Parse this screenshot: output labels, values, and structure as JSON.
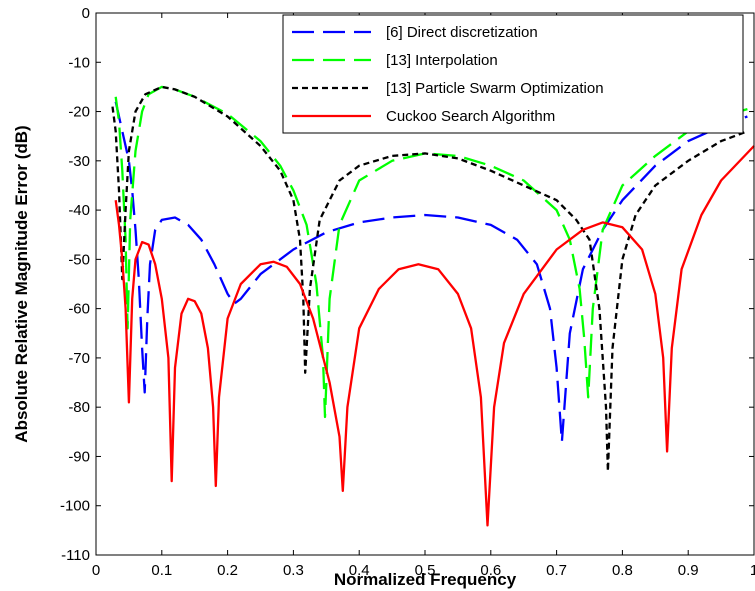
{
  "chart_data": {
    "type": "line",
    "title": "",
    "xlabel": "Normalized Frequency",
    "ylabel": "Absolute Relative Magnitude Error (dB)",
    "xlim": [
      0,
      1
    ],
    "ylim": [
      -110,
      0
    ],
    "x_ticks": [
      "0",
      "0.1",
      "0.2",
      "0.3",
      "0.4",
      "0.5",
      "0.6",
      "0.7",
      "0.8",
      "0.9",
      "1"
    ],
    "y_ticks": [
      "0",
      "-10",
      "-20",
      "-30",
      "-40",
      "-50",
      "-60",
      "-70",
      "-80",
      "-90",
      "-100",
      "-110"
    ],
    "grid": false,
    "legend_position": "top-right",
    "series": [
      {
        "name": "[6] Direct discretization",
        "color": "#0000ff",
        "dash": "long-dash",
        "points": [
          [
            0.03,
            -18
          ],
          [
            0.04,
            -24
          ],
          [
            0.05,
            -30
          ],
          [
            0.055,
            -36
          ],
          [
            0.06,
            -44
          ],
          [
            0.065,
            -54
          ],
          [
            0.07,
            -68
          ],
          [
            0.074,
            -77
          ],
          [
            0.078,
            -62
          ],
          [
            0.082,
            -51
          ],
          [
            0.09,
            -44
          ],
          [
            0.1,
            -42
          ],
          [
            0.12,
            -41.5
          ],
          [
            0.14,
            -43
          ],
          [
            0.16,
            -46
          ],
          [
            0.18,
            -51
          ],
          [
            0.2,
            -57
          ],
          [
            0.21,
            -59
          ],
          [
            0.22,
            -58
          ],
          [
            0.25,
            -53
          ],
          [
            0.3,
            -48
          ],
          [
            0.35,
            -44.5
          ],
          [
            0.4,
            -42.5
          ],
          [
            0.45,
            -41.5
          ],
          [
            0.5,
            -41
          ],
          [
            0.55,
            -41.5
          ],
          [
            0.6,
            -43
          ],
          [
            0.64,
            -46
          ],
          [
            0.67,
            -51
          ],
          [
            0.69,
            -60
          ],
          [
            0.7,
            -72
          ],
          [
            0.708,
            -87
          ],
          [
            0.72,
            -65
          ],
          [
            0.74,
            -52
          ],
          [
            0.77,
            -44
          ],
          [
            0.8,
            -38
          ],
          [
            0.85,
            -31
          ],
          [
            0.9,
            -26
          ],
          [
            0.95,
            -23
          ],
          [
            0.99,
            -21
          ]
        ]
      },
      {
        "name": "[13] Interpolation",
        "color": "#00ff00",
        "dash": "long-dash",
        "points": [
          [
            0.03,
            -17
          ],
          [
            0.035,
            -22
          ],
          [
            0.04,
            -32
          ],
          [
            0.045,
            -46
          ],
          [
            0.048,
            -64
          ],
          [
            0.052,
            -42
          ],
          [
            0.06,
            -28
          ],
          [
            0.07,
            -20
          ],
          [
            0.08,
            -16.5
          ],
          [
            0.1,
            -15
          ],
          [
            0.12,
            -15.5
          ],
          [
            0.15,
            -17
          ],
          [
            0.2,
            -20.5
          ],
          [
            0.25,
            -26
          ],
          [
            0.28,
            -31
          ],
          [
            0.3,
            -36
          ],
          [
            0.32,
            -43
          ],
          [
            0.335,
            -55
          ],
          [
            0.345,
            -70
          ],
          [
            0.348,
            -82
          ],
          [
            0.355,
            -58
          ],
          [
            0.37,
            -43
          ],
          [
            0.4,
            -34
          ],
          [
            0.45,
            -30
          ],
          [
            0.5,
            -28.5
          ],
          [
            0.55,
            -29
          ],
          [
            0.6,
            -31
          ],
          [
            0.65,
            -34
          ],
          [
            0.7,
            -40
          ],
          [
            0.72,
            -46
          ],
          [
            0.735,
            -56
          ],
          [
            0.742,
            -66
          ],
          [
            0.748,
            -78
          ],
          [
            0.755,
            -60
          ],
          [
            0.77,
            -44
          ],
          [
            0.8,
            -35
          ],
          [
            0.85,
            -29
          ],
          [
            0.9,
            -24
          ],
          [
            0.95,
            -21
          ],
          [
            0.99,
            -19.5
          ]
        ]
      },
      {
        "name": "[13] Particle Swarm Optimization",
        "color": "#000000",
        "dash": "short-dash",
        "points": [
          [
            0.025,
            -19
          ],
          [
            0.03,
            -24
          ],
          [
            0.035,
            -36
          ],
          [
            0.04,
            -54
          ],
          [
            0.045,
            -40
          ],
          [
            0.05,
            -28
          ],
          [
            0.06,
            -20
          ],
          [
            0.075,
            -16.5
          ],
          [
            0.1,
            -15
          ],
          [
            0.12,
            -15.5
          ],
          [
            0.15,
            -17
          ],
          [
            0.2,
            -21
          ],
          [
            0.25,
            -27
          ],
          [
            0.28,
            -32
          ],
          [
            0.3,
            -38
          ],
          [
            0.31,
            -46
          ],
          [
            0.315,
            -58
          ],
          [
            0.318,
            -73
          ],
          [
            0.325,
            -56
          ],
          [
            0.34,
            -42
          ],
          [
            0.37,
            -34
          ],
          [
            0.4,
            -31
          ],
          [
            0.45,
            -29
          ],
          [
            0.5,
            -28.5
          ],
          [
            0.55,
            -29.5
          ],
          [
            0.6,
            -32
          ],
          [
            0.65,
            -35
          ],
          [
            0.7,
            -38
          ],
          [
            0.73,
            -42
          ],
          [
            0.75,
            -46
          ],
          [
            0.765,
            -60
          ],
          [
            0.775,
            -80
          ],
          [
            0.778,
            -93
          ],
          [
            0.785,
            -68
          ],
          [
            0.8,
            -50
          ],
          [
            0.82,
            -41
          ],
          [
            0.85,
            -35
          ],
          [
            0.9,
            -30
          ],
          [
            0.95,
            -26
          ],
          [
            0.99,
            -24
          ]
        ]
      },
      {
        "name": "Cuckoo Search Algorithm",
        "color": "#ff0000",
        "dash": "solid",
        "points": [
          [
            0.03,
            -38
          ],
          [
            0.035,
            -43
          ],
          [
            0.04,
            -50
          ],
          [
            0.045,
            -60
          ],
          [
            0.05,
            -79
          ],
          [
            0.055,
            -58
          ],
          [
            0.06,
            -50
          ],
          [
            0.07,
            -46.5
          ],
          [
            0.08,
            -47
          ],
          [
            0.09,
            -51
          ],
          [
            0.1,
            -58
          ],
          [
            0.11,
            -70
          ],
          [
            0.115,
            -95
          ],
          [
            0.12,
            -72
          ],
          [
            0.13,
            -61
          ],
          [
            0.14,
            -58
          ],
          [
            0.15,
            -58.5
          ],
          [
            0.16,
            -61
          ],
          [
            0.17,
            -68
          ],
          [
            0.178,
            -80
          ],
          [
            0.182,
            -96
          ],
          [
            0.187,
            -78
          ],
          [
            0.2,
            -62
          ],
          [
            0.22,
            -55
          ],
          [
            0.25,
            -51
          ],
          [
            0.27,
            -50.5
          ],
          [
            0.29,
            -51.5
          ],
          [
            0.31,
            -55
          ],
          [
            0.33,
            -62
          ],
          [
            0.355,
            -75
          ],
          [
            0.37,
            -86
          ],
          [
            0.375,
            -97
          ],
          [
            0.382,
            -80
          ],
          [
            0.4,
            -64
          ],
          [
            0.43,
            -56
          ],
          [
            0.46,
            -52
          ],
          [
            0.49,
            -51
          ],
          [
            0.52,
            -52
          ],
          [
            0.55,
            -57
          ],
          [
            0.57,
            -64
          ],
          [
            0.585,
            -78
          ],
          [
            0.595,
            -104
          ],
          [
            0.605,
            -80
          ],
          [
            0.62,
            -67
          ],
          [
            0.65,
            -57
          ],
          [
            0.7,
            -48
          ],
          [
            0.74,
            -44
          ],
          [
            0.77,
            -42.5
          ],
          [
            0.8,
            -43.5
          ],
          [
            0.83,
            -48
          ],
          [
            0.85,
            -57
          ],
          [
            0.862,
            -70
          ],
          [
            0.868,
            -89
          ],
          [
            0.875,
            -68
          ],
          [
            0.89,
            -52
          ],
          [
            0.92,
            -41
          ],
          [
            0.95,
            -34
          ],
          [
            1.0,
            -27
          ]
        ]
      }
    ]
  }
}
